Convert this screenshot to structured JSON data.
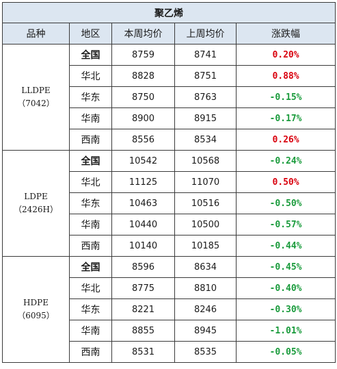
{
  "table": {
    "title": "聚乙烯",
    "headers": [
      "品种",
      "地区",
      "本周均价",
      "上周均价",
      "涨跌幅"
    ],
    "groups": [
      {
        "product_name": "LLDPE",
        "product_grade": "（7042）",
        "rows": [
          {
            "region": "全国",
            "this_week": "8759",
            "last_week": "8741",
            "change": "0.20%",
            "direction": "up"
          },
          {
            "region": "华北",
            "this_week": "8828",
            "last_week": "8751",
            "change": "0.88%",
            "direction": "up"
          },
          {
            "region": "华东",
            "this_week": "8750",
            "last_week": "8763",
            "change": "-0.15%",
            "direction": "down"
          },
          {
            "region": "华南",
            "this_week": "8900",
            "last_week": "8915",
            "change": "-0.17%",
            "direction": "down"
          },
          {
            "region": "西南",
            "this_week": "8556",
            "last_week": "8534",
            "change": "0.26%",
            "direction": "up"
          }
        ]
      },
      {
        "product_name": "LDPE",
        "product_grade": "（2426H）",
        "rows": [
          {
            "region": "全国",
            "this_week": "10542",
            "last_week": "10568",
            "change": "-0.24%",
            "direction": "down"
          },
          {
            "region": "华北",
            "this_week": "11125",
            "last_week": "11070",
            "change": "0.50%",
            "direction": "up"
          },
          {
            "region": "华东",
            "this_week": "10463",
            "last_week": "10516",
            "change": "-0.50%",
            "direction": "down"
          },
          {
            "region": "华南",
            "this_week": "10440",
            "last_week": "10500",
            "change": "-0.57%",
            "direction": "down"
          },
          {
            "region": "西南",
            "this_week": "10140",
            "last_week": "10185",
            "change": "-0.44%",
            "direction": "down"
          }
        ]
      },
      {
        "product_name": "HDPE",
        "product_grade": "（6095）",
        "rows": [
          {
            "region": "全国",
            "this_week": "8596",
            "last_week": "8634",
            "change": "-0.45%",
            "direction": "down"
          },
          {
            "region": "华北",
            "this_week": "8775",
            "last_week": "8810",
            "change": "-0.40%",
            "direction": "down"
          },
          {
            "region": "华东",
            "this_week": "8221",
            "last_week": "8246",
            "change": "-0.30%",
            "direction": "down"
          },
          {
            "region": "华南",
            "this_week": "8855",
            "last_week": "8945",
            "change": "-1.01%",
            "direction": "down"
          },
          {
            "region": "西南",
            "this_week": "8531",
            "last_week": "8535",
            "change": "-0.05%",
            "direction": "down"
          }
        ]
      }
    ]
  },
  "colors": {
    "header_bg": "#dce6f1",
    "up": "#d9000d",
    "down": "#1a9b3c"
  }
}
